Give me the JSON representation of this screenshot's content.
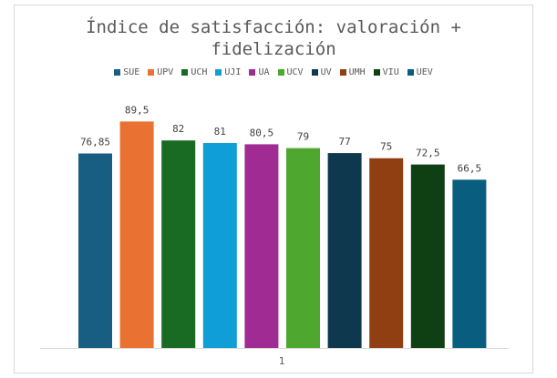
{
  "chart_data": {
    "type": "bar",
    "title": "Índice de satisfacción: valoración + fidelización",
    "categories": [
      "1"
    ],
    "legend_position": "top",
    "grid": false,
    "ylim": [
      0,
      90
    ],
    "series": [
      {
        "name": "SUE",
        "values": [
          76.85
        ],
        "label": "76,85",
        "color": "#175e82"
      },
      {
        "name": "UPV",
        "values": [
          89.5
        ],
        "label": "89,5",
        "color": "#e97132"
      },
      {
        "name": "UCH",
        "values": [
          82
        ],
        "label": "82",
        "color": "#196b24"
      },
      {
        "name": "UJI",
        "values": [
          81
        ],
        "label": "81",
        "color": "#0f9ed5"
      },
      {
        "name": "UA",
        "values": [
          80.5
        ],
        "label": "80,5",
        "color": "#a02b93"
      },
      {
        "name": "UCV",
        "values": [
          79
        ],
        "label": "79",
        "color": "#4ea72e"
      },
      {
        "name": "UV",
        "values": [
          77
        ],
        "label": "77",
        "color": "#0e384e"
      },
      {
        "name": "UMH",
        "values": [
          75
        ],
        "label": "75",
        "color": "#8f3f12"
      },
      {
        "name": "VIU",
        "values": [
          72.5
        ],
        "label": "72,5",
        "color": "#0f4014"
      },
      {
        "name": "UEV",
        "values": [
          66.5
        ],
        "label": "66,5",
        "color": "#095e7f"
      }
    ]
  }
}
